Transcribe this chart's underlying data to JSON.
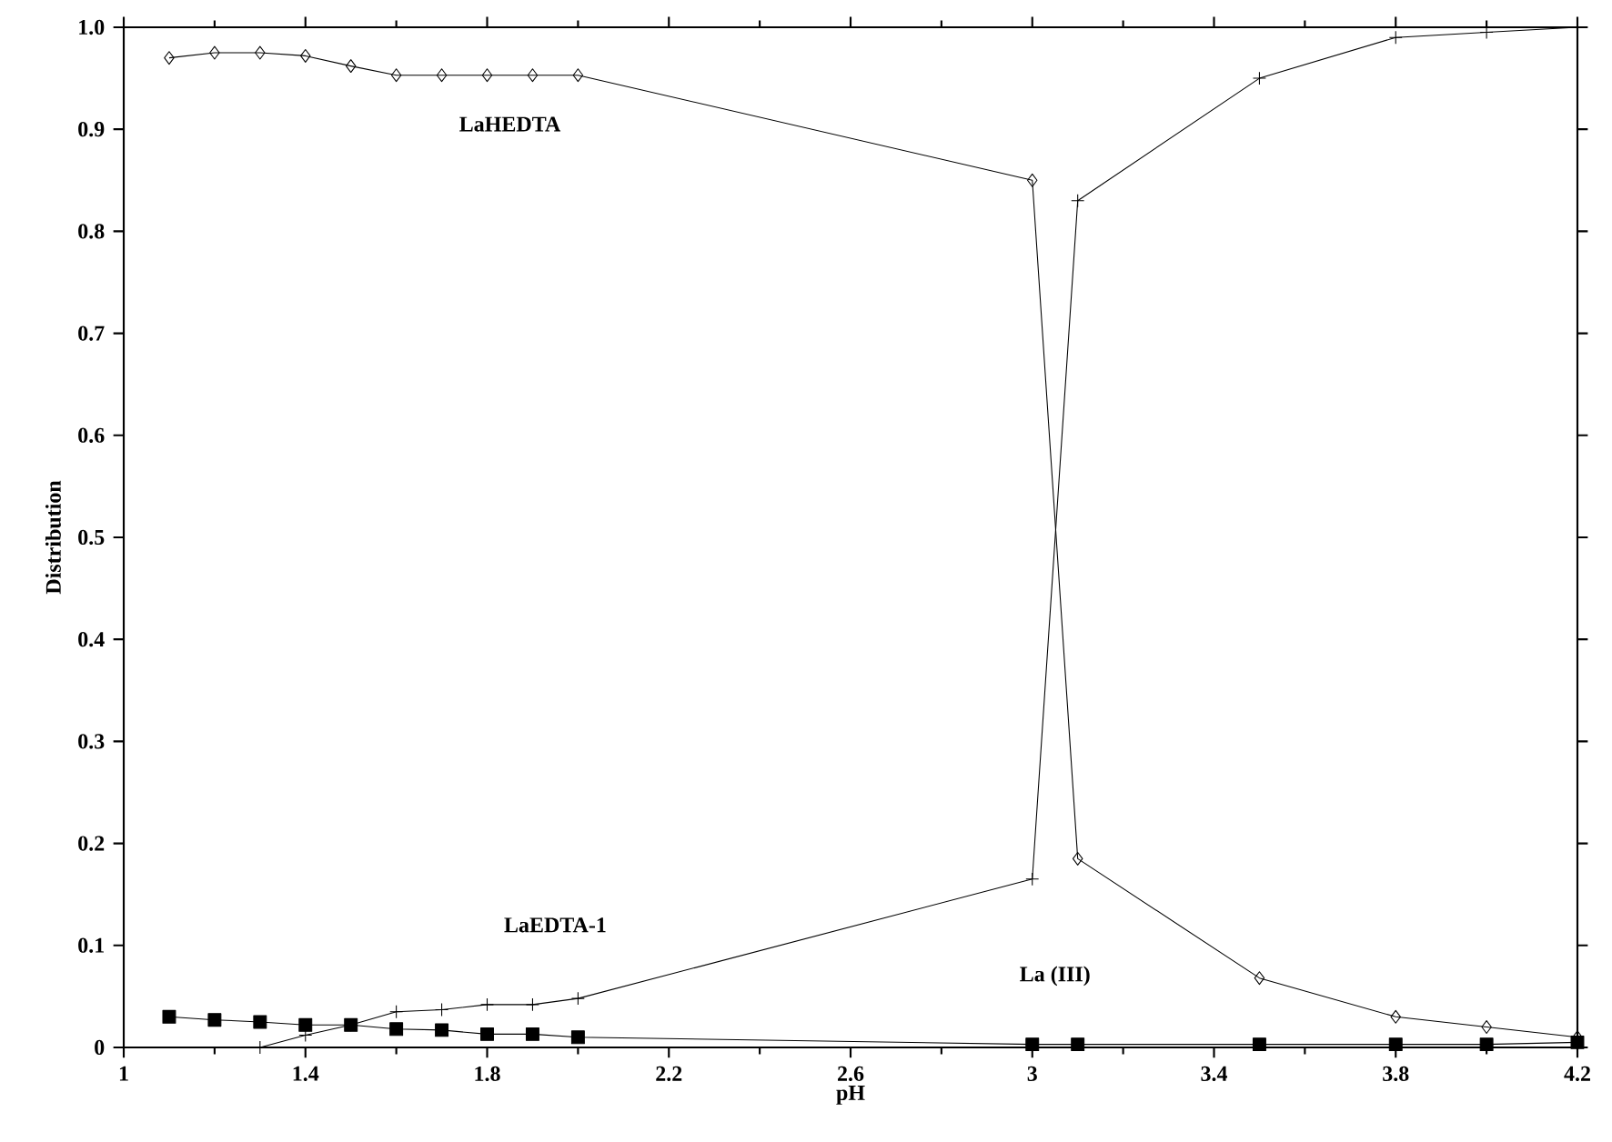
{
  "chart_data": {
    "type": "line",
    "xlabel": "pH",
    "ylabel": "Distribution",
    "x": [
      1.1,
      1.2,
      1.3,
      1.4,
      1.5,
      1.6,
      1.7,
      1.8,
      1.9,
      2.0,
      3.0,
      3.1,
      3.5,
      3.8,
      4.0,
      4.2
    ],
    "series": [
      {
        "name": "LaHEDTA",
        "color": "#000000",
        "marker": "diamond",
        "values": [
          0.97,
          0.975,
          0.975,
          0.972,
          0.962,
          0.953,
          0.953,
          0.953,
          0.953,
          0.953,
          0.85,
          0.185,
          0.068,
          0.03,
          0.02,
          0.01
        ]
      },
      {
        "name": "LaEDTA-1",
        "color": "#000000",
        "marker": "cross",
        "values": [
          null,
          null,
          0.0,
          0.012,
          0.022,
          0.035,
          0.037,
          0.042,
          0.042,
          0.048,
          0.165,
          0.83,
          0.95,
          0.99,
          0.995,
          1.0
        ]
      },
      {
        "name": "La (III)",
        "color": "#000000",
        "marker": "square",
        "values": [
          0.03,
          0.027,
          0.025,
          0.022,
          0.022,
          0.018,
          0.017,
          0.013,
          0.013,
          0.01,
          0.003,
          0.003,
          0.003,
          0.003,
          0.003,
          0.005
        ]
      }
    ],
    "xlim": [
      1,
      4.2
    ],
    "ylim": [
      0,
      1.0
    ],
    "xticks": [
      1,
      1.4,
      1.8,
      2.2,
      2.6,
      3,
      3.4,
      3.8,
      4.2
    ],
    "yticks": [
      0,
      0.1,
      0.2,
      0.3,
      0.4,
      0.5,
      0.6,
      0.7,
      0.8,
      0.9,
      {
        "value": 1.0,
        "label": "1.0"
      }
    ],
    "grid": false,
    "legend": false
  }
}
